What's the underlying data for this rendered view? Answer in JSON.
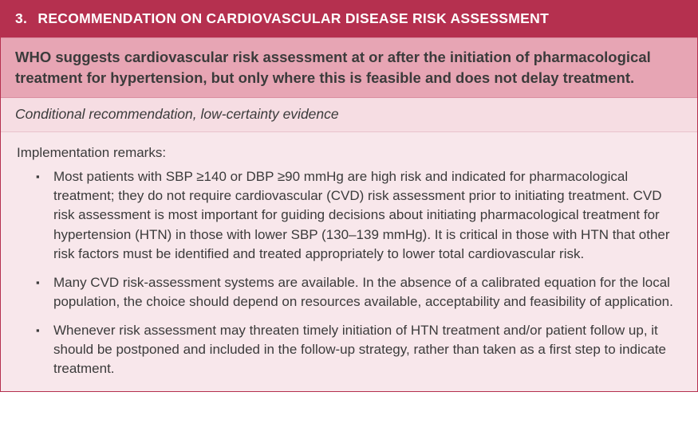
{
  "colors": {
    "header_bg": "#b5304f",
    "header_text": "#ffffff",
    "suggest_bg": "#e7a5b4",
    "cond_bg": "#f6dde3",
    "body_bg": "#f8e7eb",
    "text": "#3b3b3b",
    "border": "#b5304f"
  },
  "typography": {
    "family": "Segoe UI / Frutiger / Helvetica Neue",
    "header_size_pt": 13,
    "body_size_pt": 12.5,
    "line_height": 1.42
  },
  "header": {
    "number": "3.",
    "title": "RECOMMENDATION ON CARDIOVASCULAR DISEASE RISK ASSESSMENT"
  },
  "suggestion": "WHO suggests cardiovascular risk assessment at or after the initiation of pharmacological treatment for hypertension, but only where this is feasible and does not delay treatment.",
  "conditional": "Conditional recommendation, low-certainty evidence",
  "remarks_label": "Implementation remarks:",
  "remarks": [
    "Most patients with SBP ≥140 or DBP ≥90 mmHg are high risk and indicated for pharmacological treatment; they do not require cardiovascular (CVD) risk assessment prior to initiating treatment. CVD risk assessment is most important for guiding decisions about initiating pharmacological treatment for hypertension (HTN) in those with lower SBP (130–139 mmHg). It is critical in those with HTN that other risk factors must be identified and treated appropriately to lower total cardiovascular risk.",
    "Many CVD risk-assessment systems are available. In the absence of a calibrated equation for the local population, the choice should depend on resources available, acceptability and feasibility of application.",
    "Whenever risk assessment may threaten timely initiation of HTN treatment and/or patient follow up, it should be postponed and included in the follow-up strategy, rather than taken as a first step to indicate treatment."
  ]
}
